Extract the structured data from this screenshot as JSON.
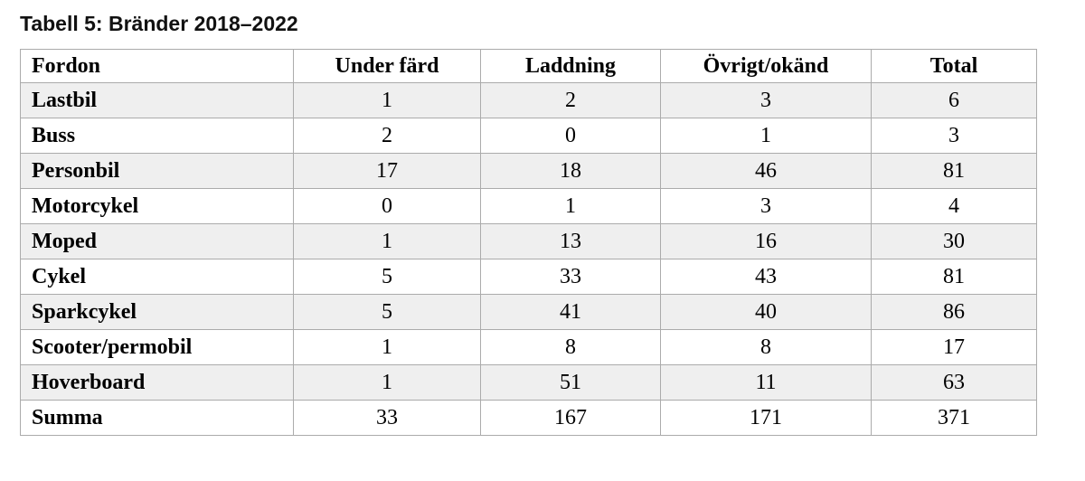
{
  "title": "Tabell 5: Bränder 2018–2022",
  "table": {
    "columns": [
      "Fordon",
      "Under färd",
      "Laddning",
      "Övrigt/okänd",
      "Total"
    ],
    "rows": [
      {
        "vehicle": "Lastbil",
        "values": [
          "1",
          "2",
          "3",
          "6"
        ]
      },
      {
        "vehicle": "Buss",
        "values": [
          "2",
          "0",
          "1",
          "3"
        ]
      },
      {
        "vehicle": "Personbil",
        "values": [
          "17",
          "18",
          "46",
          "81"
        ]
      },
      {
        "vehicle": "Motorcykel",
        "values": [
          "0",
          "1",
          "3",
          "4"
        ]
      },
      {
        "vehicle": "Moped",
        "values": [
          "1",
          "13",
          "16",
          "30"
        ]
      },
      {
        "vehicle": "Cykel",
        "values": [
          "5",
          "33",
          "43",
          "81"
        ]
      },
      {
        "vehicle": "Sparkcykel",
        "values": [
          "5",
          "41",
          "40",
          "86"
        ]
      },
      {
        "vehicle": "Scooter/permobil",
        "values": [
          "1",
          "8",
          "8",
          "17"
        ]
      },
      {
        "vehicle": "Hoverboard",
        "values": [
          "1",
          "51",
          "11",
          "63"
        ]
      },
      {
        "vehicle": "Summa",
        "values": [
          "33",
          "167",
          "171",
          "371"
        ]
      }
    ]
  },
  "colors": {
    "row_shade": "#efefef",
    "cell_border": "#ababab",
    "text": "#000000",
    "background": "#ffffff"
  }
}
